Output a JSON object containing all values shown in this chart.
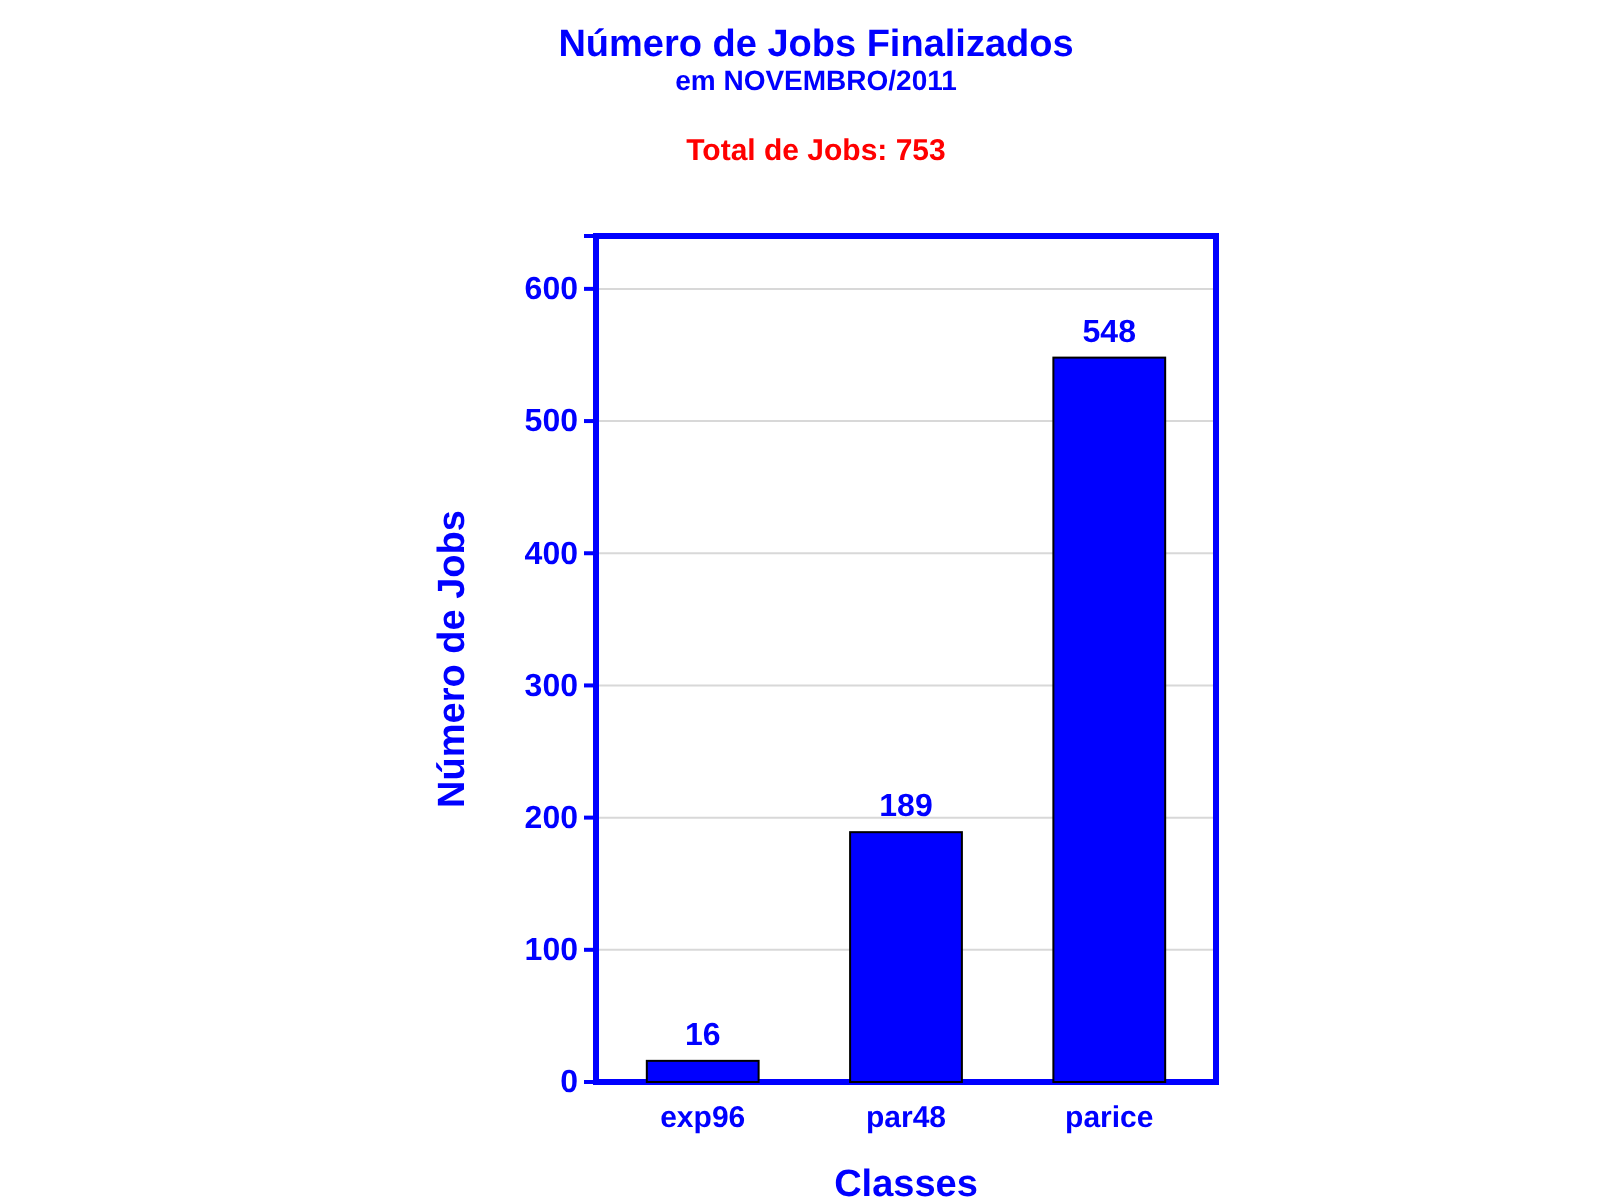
{
  "chart_data": {
    "type": "bar",
    "title": "Número de Jobs Finalizados",
    "subtitle": "em NOVEMBRO/2011",
    "xlabel": "Classes",
    "ylabel": "Número de Jobs",
    "annotations": [
      "Total de Jobs: 753"
    ],
    "categories": [
      "exp96",
      "par48",
      "parice"
    ],
    "values": [
      16,
      189,
      548
    ],
    "color": "#0000ff",
    "ylim": [
      0,
      640
    ],
    "yticks": [
      0,
      100,
      200,
      300,
      400,
      500,
      600
    ],
    "grid": "y",
    "data_labels": true
  }
}
